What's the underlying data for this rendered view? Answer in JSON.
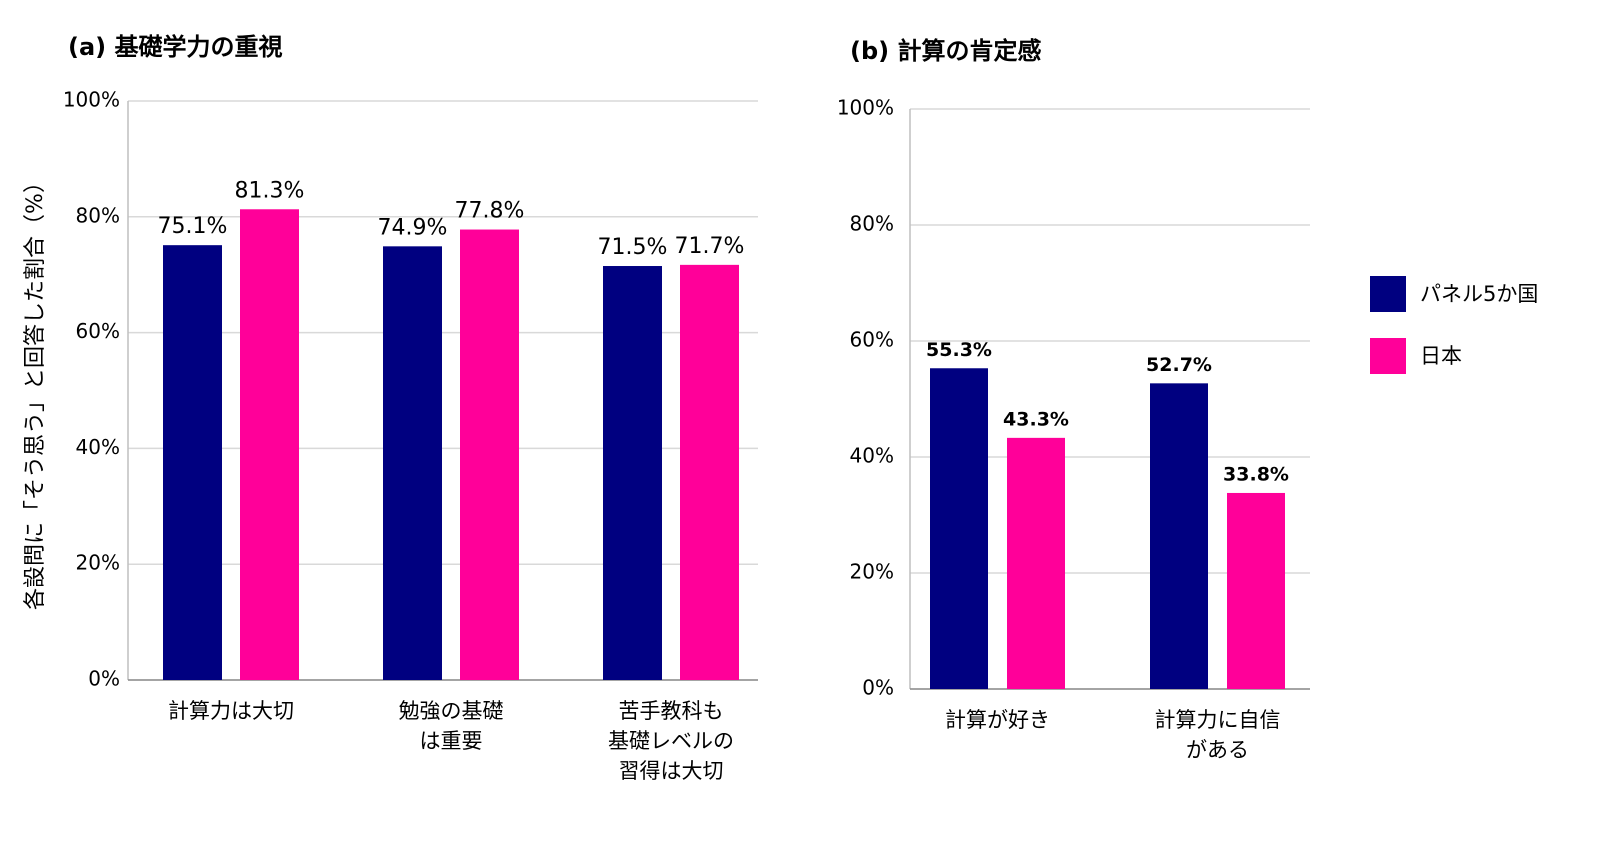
{
  "chart_data": [
    {
      "type": "bar",
      "title": "(a) 基礎学力の重視",
      "ylabel": "各設問に「そう思う」と回答した割合（%）",
      "categories": [
        [
          "計算力は大切"
        ],
        [
          "勉強の基礎",
          "は重要"
        ],
        [
          "苦手教科も",
          "基礎レベルの",
          "習得は大切"
        ]
      ],
      "series": [
        {
          "color": "#000080",
          "values": [
            75.1,
            74.9,
            71.5
          ],
          "value_labels": [
            "75.1%",
            "74.9%",
            "71.5%"
          ]
        },
        {
          "color": "#ff0099",
          "values": [
            81.3,
            77.8,
            71.7
          ],
          "value_labels": [
            "81.3%",
            "77.8%",
            "71.7%"
          ]
        }
      ],
      "ylim": [
        0,
        100
      ],
      "yticks": [
        {
          "value": 0,
          "label": "0%"
        },
        {
          "value": 20,
          "label": "20%"
        },
        {
          "value": 40,
          "label": "40%"
        },
        {
          "value": 60,
          "label": "60%"
        },
        {
          "value": 80,
          "label": "80%"
        },
        {
          "value": 100,
          "label": "100%"
        }
      ],
      "grid": true
    },
    {
      "type": "bar",
      "title": "(b) 計算の肯定感",
      "categories": [
        [
          "計算が好き"
        ],
        [
          "計算力に自信",
          "がある"
        ]
      ],
      "series": [
        {
          "name": "パネル5か国",
          "color": "#000080",
          "values": [
            55.3,
            52.7
          ],
          "value_labels": [
            "55.3%",
            "52.7%"
          ]
        },
        {
          "name": "日本",
          "color": "#ff0099",
          "values": [
            43.3,
            33.8
          ],
          "value_labels": [
            "43.3%",
            "33.8%"
          ]
        }
      ],
      "ylim": [
        0,
        100
      ],
      "yticks": [
        {
          "value": 0,
          "label": "0%"
        },
        {
          "value": 20,
          "label": "20%"
        },
        {
          "value": 40,
          "label": "40%"
        },
        {
          "value": 60,
          "label": "60%"
        },
        {
          "value": 80,
          "label": "80%"
        },
        {
          "value": 100,
          "label": "100%"
        }
      ],
      "grid": true,
      "legend": "right"
    }
  ]
}
